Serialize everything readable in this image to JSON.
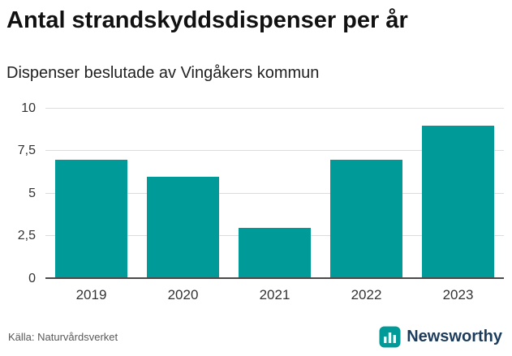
{
  "header": {
    "title": "Antal strandskyddsdispenser per år",
    "subtitle": "Dispenser beslutade av Vingåkers kommun"
  },
  "chart_data": {
    "type": "bar",
    "categories": [
      "2019",
      "2020",
      "2021",
      "2022",
      "2023"
    ],
    "values": [
      7,
      6,
      3,
      7,
      9
    ],
    "title": "Antal strandskyddsdispenser per år",
    "subtitle": "Dispenser beslutade av Vingåkers kommun",
    "xlabel": "",
    "ylabel": "",
    "ylim": [
      0,
      10
    ],
    "yticks": [
      0,
      2.5,
      5,
      7.5,
      10
    ],
    "ytick_labels": [
      "0",
      "2,5",
      "5",
      "7,5",
      "10"
    ],
    "grid": true,
    "legend": false,
    "bar_color": "#009b98"
  },
  "footer": {
    "source": "Källa: Naturvårdsverket",
    "brand": "Newsworthy"
  },
  "colors": {
    "accent": "#009b98",
    "brand_text": "#1d3c5c",
    "gridline": "#dcdcdc",
    "axis_line": "#4a4a4a"
  }
}
